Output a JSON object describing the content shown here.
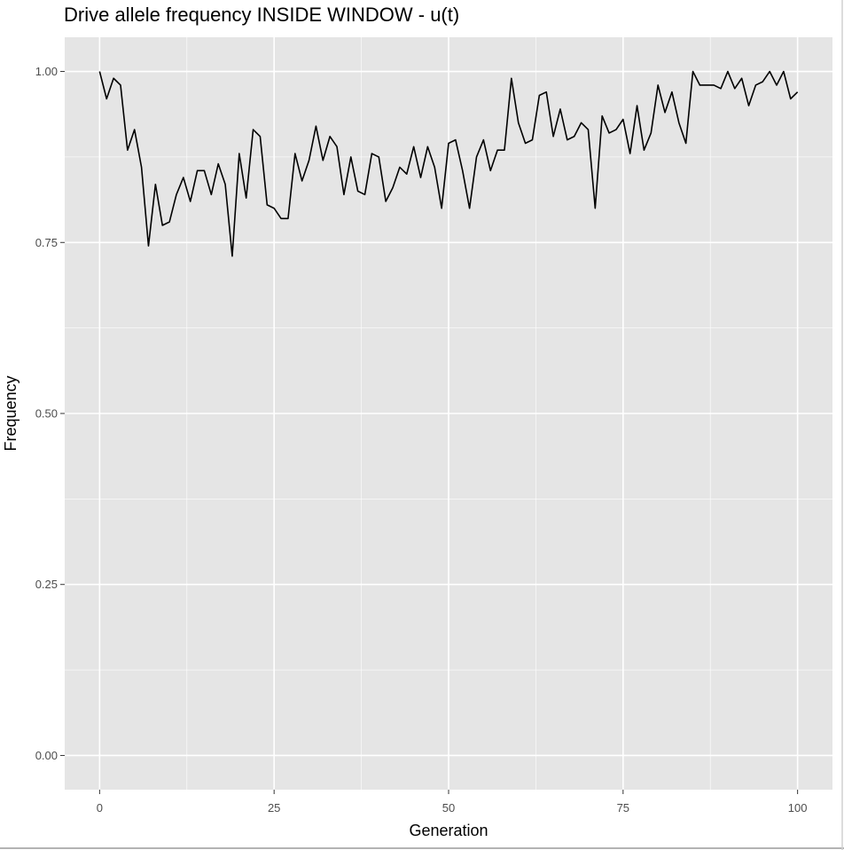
{
  "chart_data": {
    "type": "line",
    "title": "Drive allele frequency INSIDE WINDOW - u(t)",
    "xlabel": "Generation",
    "ylabel": "Frequency",
    "xlim": [
      -5,
      105
    ],
    "ylim": [
      -0.05,
      1.05
    ],
    "x_ticks": [
      0,
      25,
      50,
      75,
      100
    ],
    "x_tick_labels": [
      "0",
      "25",
      "50",
      "75",
      "100"
    ],
    "y_ticks": [
      0,
      0.25,
      0.5,
      0.75,
      1.0
    ],
    "y_tick_labels": [
      "0.00",
      "0.25",
      "0.50",
      "0.75",
      "1.00"
    ],
    "x_minor_grid": [
      12.5,
      37.5,
      62.5,
      87.5
    ],
    "y_minor_grid": [
      0.125,
      0.375,
      0.625,
      0.875
    ],
    "grid": true,
    "colors": {
      "panel_background": "#e5e5e5",
      "grid_line": "#ffffff",
      "series_line": "#000000",
      "tick_text": "#4d4d4d",
      "tick_mark": "#333333"
    },
    "series": [
      {
        "name": "u(t)",
        "x": [
          0,
          1,
          2,
          3,
          4,
          5,
          6,
          7,
          8,
          9,
          10,
          11,
          12,
          13,
          14,
          15,
          16,
          17,
          18,
          19,
          20,
          21,
          22,
          23,
          24,
          25,
          26,
          27,
          28,
          29,
          30,
          31,
          32,
          33,
          34,
          35,
          36,
          37,
          38,
          39,
          40,
          41,
          42,
          43,
          44,
          45,
          46,
          47,
          48,
          49,
          50,
          51,
          52,
          53,
          54,
          55,
          56,
          57,
          58,
          59,
          60,
          61,
          62,
          63,
          64,
          65,
          66,
          67,
          68,
          69,
          70,
          71,
          72,
          73,
          74,
          75,
          76,
          77,
          78,
          79,
          80,
          81,
          82,
          83,
          84,
          85,
          86,
          87,
          88,
          89,
          90,
          91,
          92,
          93,
          94,
          95,
          96,
          97,
          98,
          99,
          100
        ],
        "values": [
          1.0,
          0.96,
          0.99,
          0.98,
          0.885,
          0.915,
          0.86,
          0.745,
          0.835,
          0.775,
          0.78,
          0.82,
          0.845,
          0.81,
          0.855,
          0.855,
          0.82,
          0.865,
          0.835,
          0.73,
          0.88,
          0.815,
          0.915,
          0.905,
          0.805,
          0.8,
          0.785,
          0.785,
          0.88,
          0.84,
          0.87,
          0.92,
          0.87,
          0.905,
          0.89,
          0.82,
          0.875,
          0.825,
          0.82,
          0.88,
          0.875,
          0.81,
          0.83,
          0.86,
          0.85,
          0.89,
          0.845,
          0.89,
          0.86,
          0.8,
          0.895,
          0.9,
          0.855,
          0.8,
          0.875,
          0.9,
          0.855,
          0.885,
          0.885,
          0.99,
          0.925,
          0.895,
          0.9,
          0.965,
          0.97,
          0.905,
          0.945,
          0.9,
          0.905,
          0.925,
          0.915,
          0.8,
          0.935,
          0.91,
          0.915,
          0.93,
          0.88,
          0.95,
          0.885,
          0.91,
          0.98,
          0.94,
          0.97,
          0.925,
          0.895,
          1.0,
          0.98,
          0.98,
          0.98,
          0.975,
          1.0,
          0.975,
          0.99,
          0.95,
          0.98,
          0.985,
          1.0,
          0.98,
          1.0,
          0.96,
          0.97
        ]
      }
    ]
  }
}
